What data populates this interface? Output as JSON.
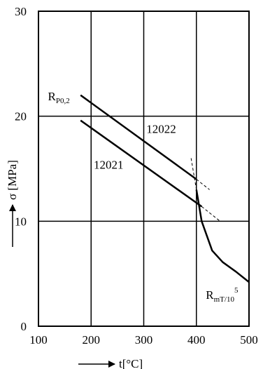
{
  "chart_data": {
    "type": "line",
    "xlabel": "t[°C]",
    "ylabel": "σ [MPa]",
    "xlim": [
      100,
      500
    ],
    "ylim": [
      0,
      30
    ],
    "grid": true,
    "x_ticks": [
      100,
      200,
      300,
      400,
      500
    ],
    "x_tick_labels": [
      "100",
      "200",
      "300",
      "400",
      "500"
    ],
    "y_ticks": [
      0,
      10,
      20,
      30
    ],
    "y_tick_labels": [
      "0",
      "10",
      "20",
      "30"
    ],
    "series": [
      {
        "name": "12022",
        "style": "solid",
        "points": [
          [
            180,
            22.0
          ],
          [
            400,
            14.0
          ]
        ]
      },
      {
        "name": "12021",
        "style": "solid",
        "points": [
          [
            180,
            19.6
          ],
          [
            410,
            11.4
          ]
        ]
      },
      {
        "name": "",
        "style": "dashed",
        "points": [
          [
            400,
            14.0
          ],
          [
            425,
            13.0
          ]
        ]
      },
      {
        "name": "",
        "style": "dashed",
        "points": [
          [
            410,
            11.4
          ],
          [
            445,
            10.0
          ]
        ]
      },
      {
        "name": "",
        "style": "solid",
        "points": [
          [
            400,
            13.0
          ],
          [
            410,
            10.0
          ],
          [
            430,
            7.2
          ],
          [
            450,
            6.1
          ],
          [
            475,
            5.2
          ],
          [
            500,
            4.2
          ]
        ]
      },
      {
        "name": "",
        "style": "dashed",
        "points": [
          [
            390,
            16.0
          ],
          [
            400,
            13.0
          ]
        ]
      }
    ],
    "annotations": [
      {
        "id": "rp",
        "main": "R",
        "sub": "P0,2",
        "sup": "",
        "x": 118,
        "y": 21.5
      },
      {
        "id": "rm",
        "main": "R",
        "sub": "mT/10",
        "sup": "5",
        "x": 418,
        "y": 2.6
      },
      {
        "id": "s12022",
        "main": "12022",
        "sub": "",
        "sup": "",
        "x": 305,
        "y": 18.4
      },
      {
        "id": "s12021",
        "main": "12021",
        "sub": "",
        "sup": "",
        "x": 205,
        "y": 15.0
      }
    ]
  }
}
